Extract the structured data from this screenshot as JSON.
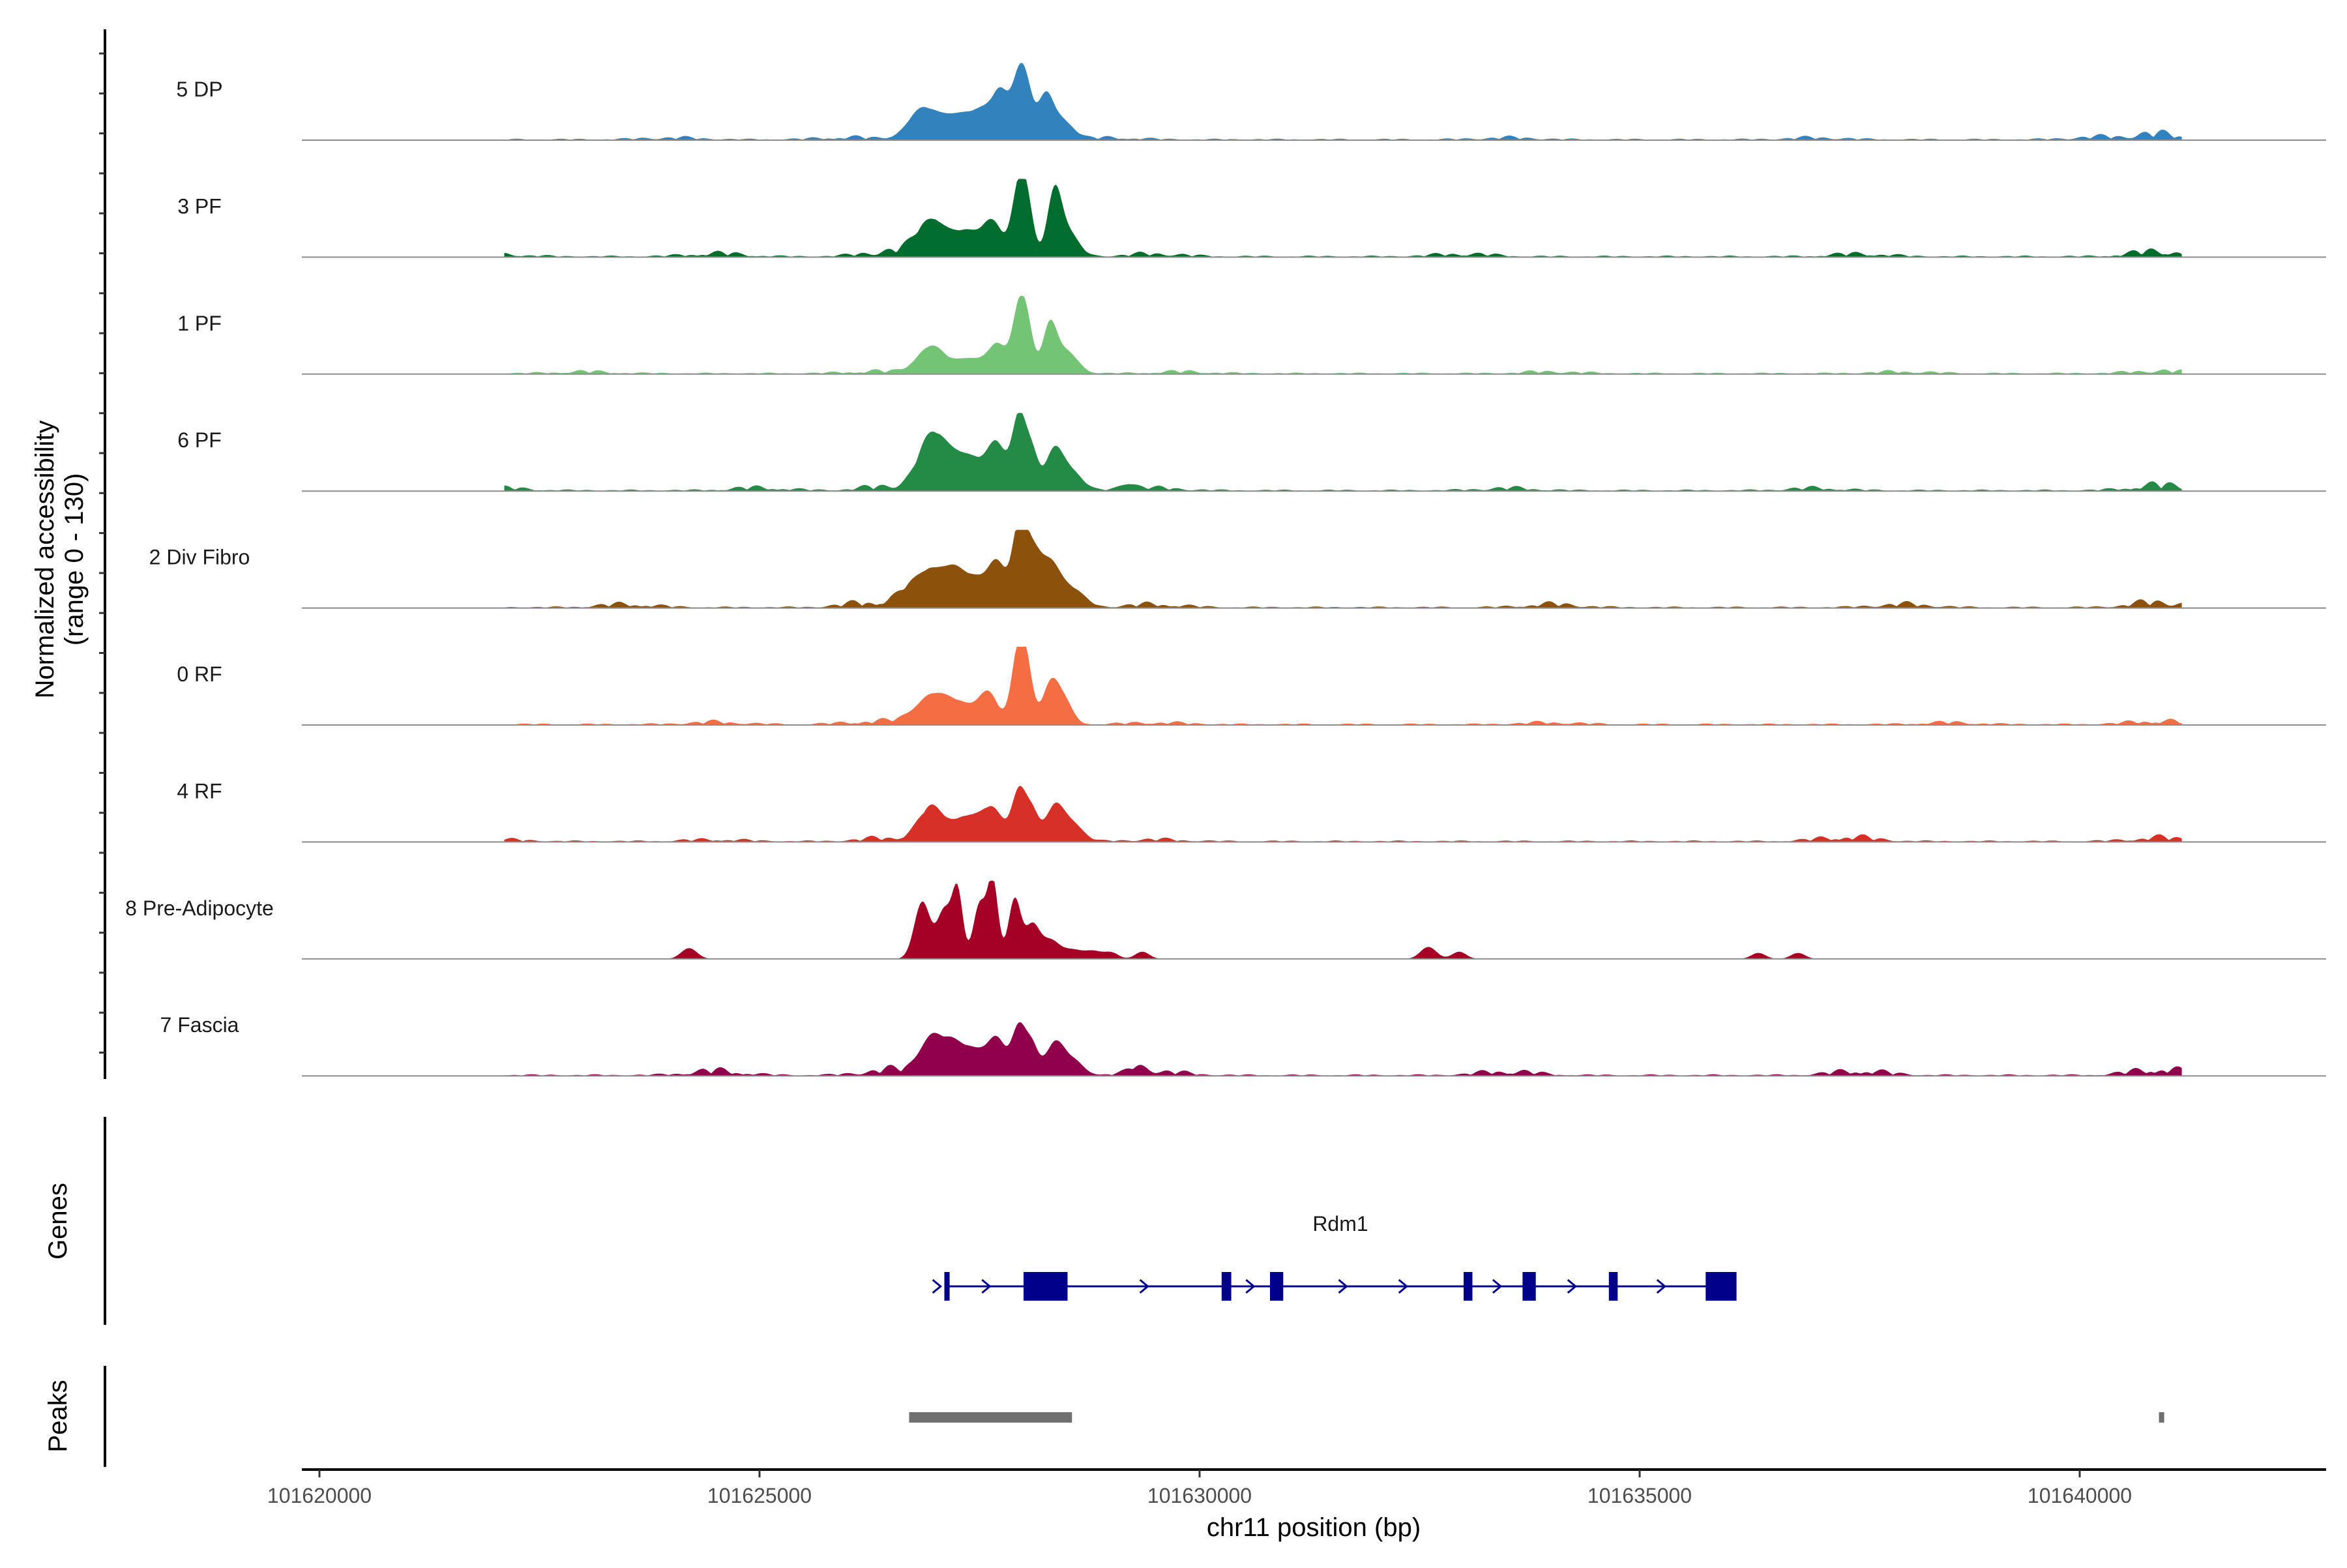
{
  "chart_data": {
    "type": "area",
    "title": "",
    "region": {
      "chromosome": "chr11",
      "start": 101619800,
      "end": 101642800
    },
    "xlabel": "chr11 position (bp)",
    "ylabel_line1": "Normalized accessibility",
    "ylabel_line2": "(range 0 - 130)",
    "ylim": [
      0,
      130
    ],
    "x_ticks": [
      101620000,
      101625000,
      101630000,
      101635000,
      101640000
    ],
    "x_tick_labels": [
      "101620000",
      "101625000",
      "101630000",
      "101635000",
      "101640000"
    ],
    "tracks": [
      {
        "name": "5 DP",
        "color": "#3182BD",
        "peaks": [
          [
            101626850,
            50,
            160
          ],
          [
            101627150,
            25,
            140
          ],
          [
            101627400,
            35,
            160
          ],
          [
            101627600,
            30,
            120
          ],
          [
            101627750,
            65,
            90
          ],
          [
            101627950,
            100,
            80
          ],
          [
            101628050,
            50,
            70
          ],
          [
            101628250,
            70,
            90
          ],
          [
            101628450,
            30,
            120
          ]
        ],
        "noise": [
          [
            101624000,
            4
          ],
          [
            101626000,
            5
          ],
          [
            101629000,
            4
          ],
          [
            101633500,
            4
          ],
          [
            101637000,
            4
          ],
          [
            101640200,
            5
          ],
          [
            101640900,
            12
          ]
        ]
      },
      {
        "name": "3 PF",
        "color": "#006D2C",
        "peaks": [
          [
            101626950,
            60,
            160
          ],
          [
            101627350,
            40,
            160
          ],
          [
            101627650,
            55,
            110
          ],
          [
            101627950,
            115,
            80
          ],
          [
            101628050,
            60,
            70
          ],
          [
            101628350,
            100,
            80
          ],
          [
            101628500,
            40,
            120
          ]
        ],
        "noise": [
          [
            101622000,
            5
          ],
          [
            101624500,
            7
          ],
          [
            101626500,
            12
          ],
          [
            101629500,
            6
          ],
          [
            101633000,
            6
          ],
          [
            101637500,
            6
          ],
          [
            101640900,
            12
          ]
        ]
      },
      {
        "name": "1 PF",
        "color": "#74C476",
        "peaks": [
          [
            101626950,
            45,
            160
          ],
          [
            101627400,
            25,
            160
          ],
          [
            101627700,
            45,
            100
          ],
          [
            101627950,
            105,
            80
          ],
          [
            101628050,
            55,
            70
          ],
          [
            101628300,
            80,
            80
          ],
          [
            101628500,
            35,
            120
          ]
        ],
        "noise": [
          [
            101623000,
            4
          ],
          [
            101626300,
            5
          ],
          [
            101629800,
            4
          ],
          [
            101634000,
            4
          ],
          [
            101638000,
            4
          ],
          [
            101640900,
            6
          ]
        ]
      },
      {
        "name": "6 PF",
        "color": "#238B45",
        "peaks": [
          [
            101626950,
            85,
            150
          ],
          [
            101627200,
            40,
            140
          ],
          [
            101627450,
            45,
            150
          ],
          [
            101627700,
            70,
            100
          ],
          [
            101627950,
            125,
            80
          ],
          [
            101628100,
            55,
            70
          ],
          [
            101628350,
            65,
            100
          ],
          [
            101628550,
            30,
            120
          ],
          [
            101629200,
            10,
            100
          ]
        ],
        "noise": [
          [
            101622000,
            6
          ],
          [
            101625000,
            6
          ],
          [
            101626500,
            10
          ],
          [
            101629500,
            5
          ],
          [
            101633500,
            5
          ],
          [
            101637000,
            5
          ],
          [
            101640900,
            12
          ]
        ]
      },
      {
        "name": "2 Div Fibro",
        "color": "#8C510A",
        "peaks": [
          [
            101626700,
            25,
            140
          ],
          [
            101626950,
            55,
            140
          ],
          [
            101627200,
            50,
            120
          ],
          [
            101627450,
            45,
            140
          ],
          [
            101627700,
            70,
            100
          ],
          [
            101627950,
            130,
            80
          ],
          [
            101628100,
            80,
            90
          ],
          [
            101628300,
            70,
            110
          ],
          [
            101628550,
            30,
            140
          ]
        ],
        "noise": [
          [
            101621000,
            4
          ],
          [
            101623500,
            7
          ],
          [
            101626300,
            12
          ],
          [
            101629500,
            7
          ],
          [
            101634000,
            7
          ],
          [
            101638000,
            7
          ],
          [
            101640900,
            12
          ]
        ]
      },
      {
        "name": "0 RF",
        "color": "#F46D43",
        "peaks": [
          [
            101626800,
            15,
            160
          ],
          [
            101627000,
            40,
            160
          ],
          [
            101627300,
            30,
            160
          ],
          [
            101627600,
            50,
            110
          ],
          [
            101627950,
            130,
            80
          ],
          [
            101628050,
            55,
            70
          ],
          [
            101628300,
            60,
            90
          ],
          [
            101628450,
            40,
            100
          ]
        ],
        "noise": [
          [
            101621500,
            4
          ],
          [
            101624500,
            5
          ],
          [
            101626300,
            7
          ],
          [
            101629500,
            4
          ],
          [
            101634000,
            4
          ],
          [
            101638500,
            4
          ],
          [
            101640900,
            8
          ]
        ]
      },
      {
        "name": "4 RF",
        "color": "#D73027",
        "peaks": [
          [
            101626950,
            55,
            140
          ],
          [
            101627350,
            40,
            160
          ],
          [
            101627650,
            50,
            120
          ],
          [
            101627950,
            85,
            80
          ],
          [
            101628100,
            45,
            70
          ],
          [
            101628350,
            55,
            100
          ],
          [
            101628550,
            30,
            120
          ]
        ],
        "noise": [
          [
            101622000,
            4
          ],
          [
            101624500,
            4
          ],
          [
            101626500,
            8
          ],
          [
            101629500,
            4
          ],
          [
            101637350,
            10
          ],
          [
            101640900,
            8
          ]
        ]
      },
      {
        "name": "8 Pre-Adipocyte",
        "color": "#A50026",
        "peaks": [
          [
            101626850,
            95,
            90
          ],
          [
            101627100,
            80,
            80
          ],
          [
            101627250,
            110,
            60
          ],
          [
            101627500,
            90,
            70
          ],
          [
            101627650,
            130,
            60
          ],
          [
            101627900,
            100,
            70
          ],
          [
            101628100,
            55,
            80
          ],
          [
            101628300,
            30,
            100
          ],
          [
            101624200,
            18,
            90
          ],
          [
            101628550,
            15,
            120
          ],
          [
            101628800,
            12,
            100
          ],
          [
            101629000,
            10,
            80
          ],
          [
            101629350,
            12,
            80
          ],
          [
            101632600,
            20,
            90
          ],
          [
            101632950,
            12,
            80
          ],
          [
            101636350,
            10,
            80
          ],
          [
            101636800,
            10,
            80
          ]
        ],
        "noise": []
      },
      {
        "name": "7 Fascia",
        "color": "#91004B",
        "peaks": [
          [
            101626950,
            60,
            140
          ],
          [
            101627200,
            40,
            120
          ],
          [
            101627450,
            40,
            140
          ],
          [
            101627700,
            55,
            100
          ],
          [
            101627950,
            80,
            80
          ],
          [
            101628100,
            45,
            70
          ],
          [
            101628350,
            50,
            100
          ],
          [
            101628550,
            25,
            120
          ],
          [
            101629300,
            10,
            100
          ]
        ],
        "noise": [
          [
            101621500,
            8
          ],
          [
            101624500,
            10
          ],
          [
            101626500,
            12
          ],
          [
            101629500,
            9
          ],
          [
            101633500,
            9
          ],
          [
            101637500,
            10
          ],
          [
            101640900,
            14
          ]
        ]
      }
    ],
    "genes_label": "Genes",
    "gene": {
      "name": "Rdm1",
      "strand": "+",
      "start": 101627100,
      "end": 101636100,
      "exons": [
        [
          101627100,
          101627160
        ],
        [
          101628000,
          101628500
        ],
        [
          101630250,
          101630360
        ],
        [
          101630800,
          101630950
        ],
        [
          101633000,
          101633100
        ],
        [
          101633670,
          101633820
        ],
        [
          101634650,
          101634750
        ],
        [
          101635750,
          101636100
        ]
      ]
    },
    "peaks_label": "Peaks",
    "peak_regions": [
      [
        101626700,
        101628550
      ],
      [
        101640900,
        101640960
      ]
    ]
  }
}
